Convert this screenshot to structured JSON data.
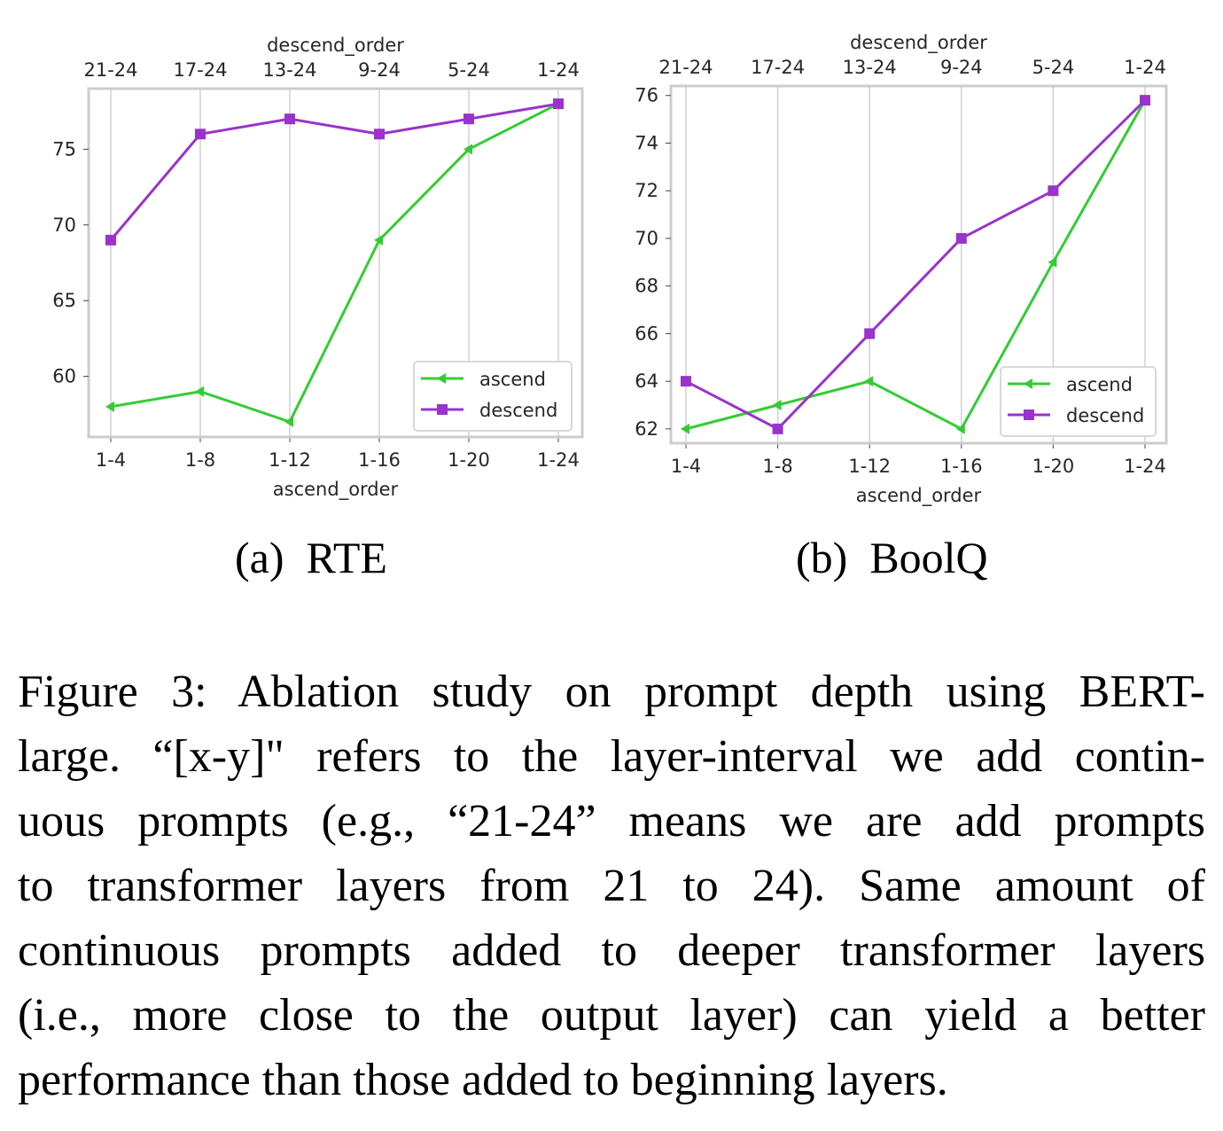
{
  "chart_data": [
    {
      "type": "line",
      "title": "RTE",
      "subcaption_label": "(a)",
      "xlabel": "ascend_order",
      "x2label": "descend_order",
      "categories": [
        "1-4",
        "1-8",
        "1-12",
        "1-16",
        "1-20",
        "1-24"
      ],
      "top_categories": [
        "21-24",
        "17-24",
        "13-24",
        "9-24",
        "5-24",
        "1-24"
      ],
      "yticks": [
        60,
        65,
        70,
        75
      ],
      "ylim": [
        56,
        79
      ],
      "grid": "vertical",
      "legend": "bottom-right",
      "series": [
        {
          "name": "ascend",
          "color": "#33cc33",
          "marker": "triangle-left",
          "values": [
            58,
            59,
            57,
            69,
            75,
            78
          ]
        },
        {
          "name": "descend",
          "color": "#9933cc",
          "marker": "square",
          "values": [
            69,
            76,
            77,
            76,
            77,
            78
          ]
        }
      ]
    },
    {
      "type": "line",
      "title": "BoolQ",
      "subcaption_label": "(b)",
      "xlabel": "ascend_order",
      "x2label": "descend_order",
      "categories": [
        "1-4",
        "1-8",
        "1-12",
        "1-16",
        "1-20",
        "1-24"
      ],
      "top_categories": [
        "21-24",
        "17-24",
        "13-24",
        "9-24",
        "5-24",
        "1-24"
      ],
      "yticks": [
        62,
        64,
        66,
        68,
        70,
        72,
        74,
        76
      ],
      "ylim": [
        61.4,
        76.4
      ],
      "grid": "vertical",
      "legend": "bottom-right",
      "series": [
        {
          "name": "ascend",
          "color": "#33cc33",
          "marker": "triangle-left",
          "values": [
            62,
            63,
            64,
            62,
            69,
            75.8
          ]
        },
        {
          "name": "descend",
          "color": "#9933cc",
          "marker": "square",
          "values": [
            64,
            62,
            66,
            70,
            72,
            75.8
          ]
        }
      ]
    }
  ],
  "caption": {
    "lines": [
      "Figure 3: Ablation study on prompt depth using BERT-",
      "large. “[x-y]\" refers to the layer-interval we add contin-",
      "uous prompts (e.g., “21-24” means we are add prompts",
      "to transformer layers from 21 to 24). Same amount of",
      "continuous prompts added to deeper transformer layers",
      "(i.e., more close to the output layer) can yield a better",
      "performance than those added to beginning layers."
    ]
  }
}
